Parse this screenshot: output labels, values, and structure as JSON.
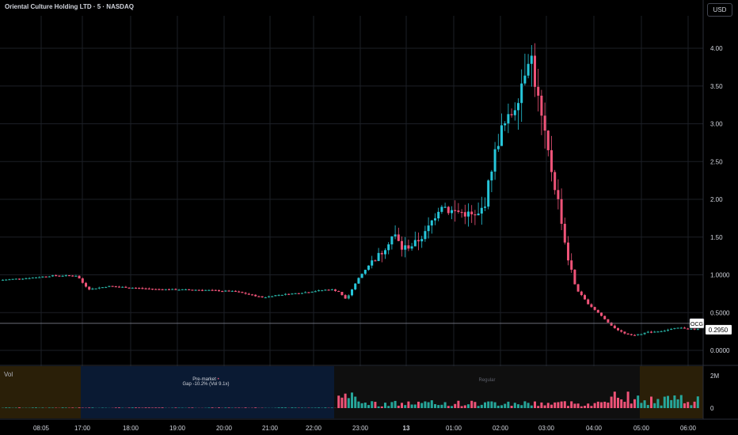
{
  "header": {
    "title": "Oriental Culture Holding LTD · 5 · NASDAQ",
    "currency": "USD"
  },
  "volume_pane": {
    "label": "Vol",
    "ticks": [
      "2M",
      "0"
    ]
  },
  "sessions": {
    "premarket": {
      "label": "Pre-market",
      "note": "Gap -10.2% (Vol 9.1x)"
    },
    "regular": {
      "label": "Regular"
    }
  },
  "price_tags": {
    "symbol": "OCG",
    "last": "0.2950"
  },
  "colors": {
    "up": "#26a69a",
    "up_bright": "#26c6da",
    "down": "#ef5378",
    "grid": "#1c1f26",
    "axis_text": "#d1d4dc",
    "premarket_bg": "#0a1a33",
    "regular_bg": "#0f0f0f",
    "afterhours_bg": "#2a1f08"
  },
  "chart_data": {
    "type": "candlestick",
    "y_ticks": [
      "4.00",
      "3.50",
      "3.00",
      "2.50",
      "2.00",
      "1.50",
      "1.0000",
      "0.5000",
      "0.0000"
    ],
    "y_tick_values": [
      4.0,
      3.5,
      3.0,
      2.5,
      2.0,
      1.5,
      1.0,
      0.5,
      0.0
    ],
    "x_ticks": [
      "08:05",
      "17:00",
      "18:00",
      "19:00",
      "20:00",
      "21:00",
      "22:00",
      "23:00",
      "13",
      "01:00",
      "02:00",
      "03:00",
      "04:00",
      "05:00",
      "06:00"
    ],
    "last_price": 0.295,
    "price_profile": [
      [
        0,
        0.93
      ],
      [
        40,
        0.96
      ],
      [
        70,
        0.99
      ],
      [
        100,
        0.99
      ],
      [
        108,
        0.88
      ],
      [
        115,
        0.81
      ],
      [
        140,
        0.85
      ],
      [
        200,
        0.81
      ],
      [
        260,
        0.8
      ],
      [
        300,
        0.78
      ],
      [
        335,
        0.7
      ],
      [
        350,
        0.73
      ],
      [
        380,
        0.76
      ],
      [
        420,
        0.81
      ],
      [
        430,
        0.78
      ],
      [
        440,
        0.68
      ],
      [
        455,
        0.95
      ],
      [
        470,
        1.15
      ],
      [
        485,
        1.3
      ],
      [
        500,
        1.55
      ],
      [
        510,
        1.35
      ],
      [
        525,
        1.4
      ],
      [
        540,
        1.55
      ],
      [
        560,
        1.95
      ],
      [
        570,
        1.85
      ],
      [
        590,
        1.82
      ],
      [
        605,
        1.75
      ],
      [
        615,
        1.95
      ],
      [
        625,
        2.5
      ],
      [
        635,
        2.9
      ],
      [
        645,
        3.05
      ],
      [
        655,
        3.3
      ],
      [
        665,
        3.7
      ],
      [
        672,
        4.0
      ],
      [
        680,
        3.45
      ],
      [
        690,
        2.85
      ],
      [
        700,
        2.35
      ],
      [
        710,
        1.85
      ],
      [
        718,
        1.3
      ],
      [
        730,
        0.82
      ],
      [
        745,
        0.62
      ],
      [
        760,
        0.48
      ],
      [
        775,
        0.32
      ],
      [
        790,
        0.23
      ],
      [
        805,
        0.2
      ],
      [
        820,
        0.24
      ],
      [
        840,
        0.26
      ],
      [
        860,
        0.3
      ],
      [
        880,
        0.28
      ]
    ],
    "price_range": [
      0.0,
      4.2
    ]
  }
}
